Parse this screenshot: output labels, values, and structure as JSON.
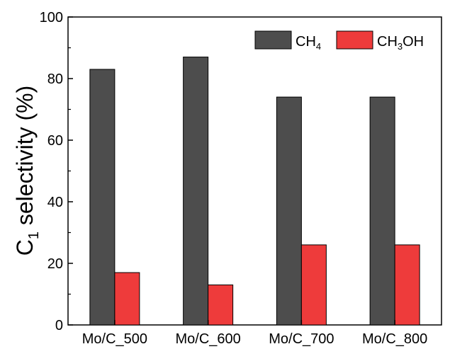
{
  "chart_data": {
    "type": "bar",
    "categories": [
      "Mo/C_500",
      "Mo/C_600",
      "Mo/C_700",
      "Mo/C_800"
    ],
    "series": [
      {
        "name": "CH4",
        "name_main": "CH",
        "name_sub": "4",
        "name_tail": "",
        "color": "#4d4d4d",
        "values": [
          83,
          87,
          74,
          74
        ]
      },
      {
        "name": "CH3OH",
        "name_main": "CH",
        "name_sub": "3",
        "name_tail": "OH",
        "color": "#ee3b3b",
        "values": [
          17,
          13,
          26,
          26
        ]
      }
    ],
    "ylabel": "C1 selectivity (%)",
    "ylabel_main": "C",
    "ylabel_sub": "1",
    "ylabel_tail": " selectivity (%)",
    "ylim": [
      0,
      100
    ],
    "yticks": [
      "0",
      "20",
      "40",
      "60",
      "80",
      "100"
    ],
    "legend_position": "top-right",
    "grid": false
  }
}
